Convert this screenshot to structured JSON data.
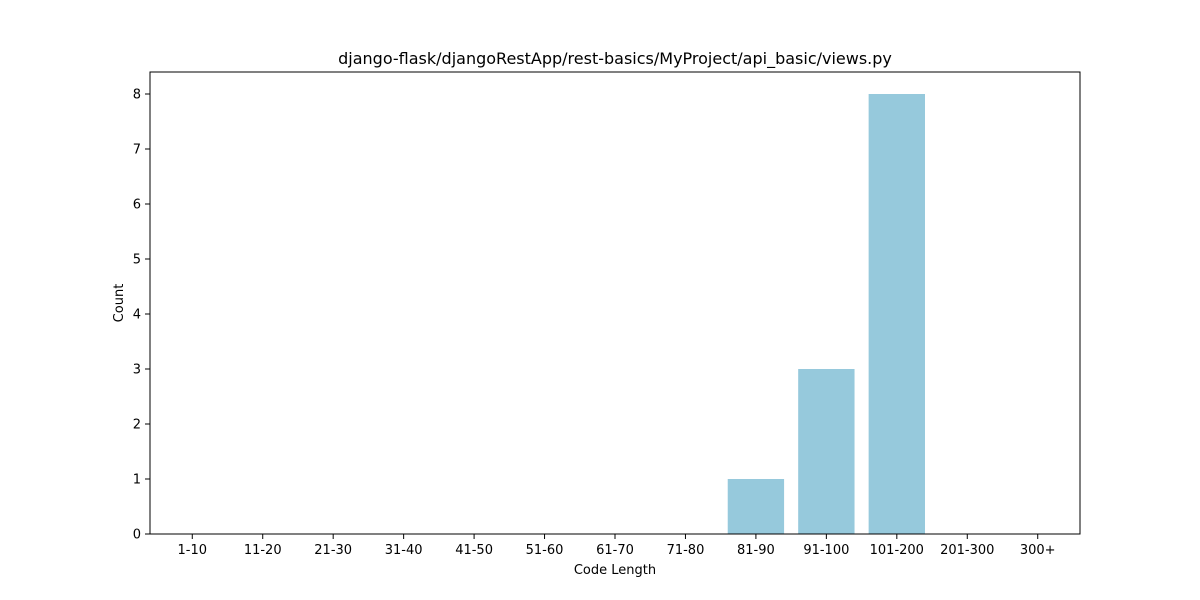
{
  "chart_data": {
    "type": "bar",
    "title": "django-flask/djangoRestApp/rest-basics/MyProject/api_basic/views.py",
    "xlabel": "Code Length",
    "ylabel": "Count",
    "categories": [
      "1-10",
      "11-20",
      "21-30",
      "31-40",
      "41-50",
      "51-60",
      "61-70",
      "71-80",
      "81-90",
      "91-100",
      "101-200",
      "201-300",
      "300+"
    ],
    "values": [
      0,
      0,
      0,
      0,
      0,
      0,
      0,
      0,
      1,
      3,
      8,
      0,
      0
    ],
    "yticks": [
      0,
      1,
      2,
      3,
      4,
      5,
      6,
      7,
      8
    ],
    "ylim": [
      0,
      8.4
    ],
    "grid": false,
    "legend": "none",
    "bar_color": "#96c9dc",
    "axis_color": "#000000"
  }
}
